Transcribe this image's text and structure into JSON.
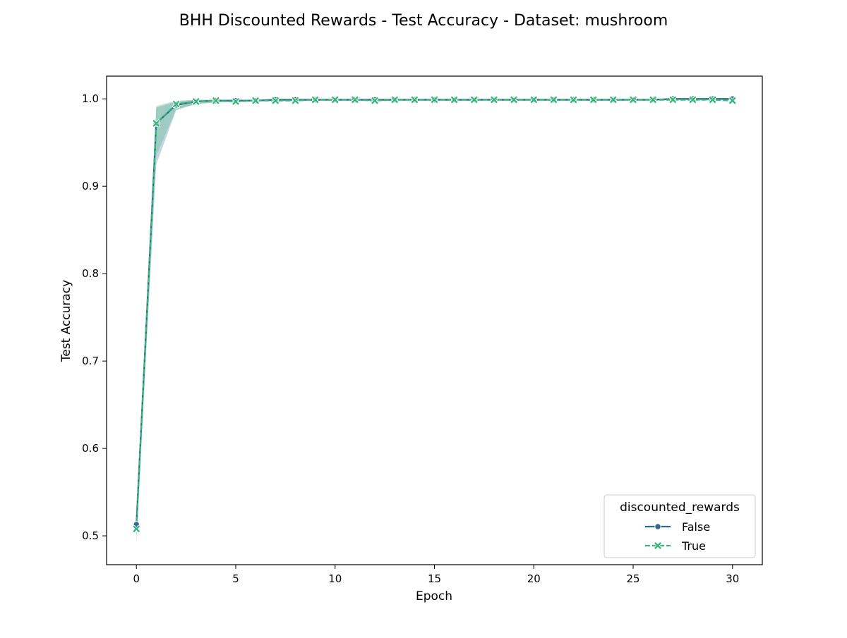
{
  "chart_data": {
    "type": "line",
    "title": "BHH Discounted Rewards - Test Accuracy - Dataset: mushroom",
    "xlabel": "Epoch",
    "ylabel": "Test Accuracy",
    "xlim": [
      -1.5,
      31.5
    ],
    "ylim": [
      0.467,
      1.026
    ],
    "xticks": [
      0,
      5,
      10,
      15,
      20,
      25,
      30
    ],
    "xtick_labels": [
      "0",
      "5",
      "10",
      "15",
      "20",
      "25",
      "30"
    ],
    "yticks": [
      0.5,
      0.6,
      0.7,
      0.8,
      0.9,
      1.0
    ],
    "ytick_labels": [
      "0.5",
      "0.6",
      "0.7",
      "0.8",
      "0.9",
      "1.0"
    ],
    "grid": false,
    "legend": {
      "title": "discounted_rewards",
      "placement": "lower-right"
    },
    "x": [
      0,
      1,
      2,
      3,
      4,
      5,
      6,
      7,
      8,
      9,
      10,
      11,
      12,
      13,
      14,
      15,
      16,
      17,
      18,
      19,
      20,
      21,
      22,
      23,
      24,
      25,
      26,
      27,
      28,
      29,
      30
    ],
    "series": [
      {
        "name": "False",
        "color": "#31688e",
        "marker": "circle",
        "linestyle": "solid",
        "values": [
          0.513,
          0.972,
          0.993,
          0.997,
          0.998,
          0.998,
          0.998,
          0.999,
          0.999,
          0.999,
          0.999,
          0.999,
          0.999,
          0.999,
          0.999,
          0.999,
          0.999,
          0.999,
          0.999,
          0.999,
          0.999,
          0.999,
          0.999,
          0.999,
          0.999,
          0.999,
          0.999,
          1.0,
          1.0,
          1.0,
          1.0
        ],
        "ci_low": [
          0.505,
          0.925,
          0.987,
          0.994,
          0.996,
          0.997,
          0.997,
          0.998,
          0.998,
          0.998,
          0.998,
          0.998,
          0.998,
          0.998,
          0.998,
          0.998,
          0.998,
          0.998,
          0.998,
          0.998,
          0.998,
          0.998,
          0.998,
          0.998,
          0.998,
          0.998,
          0.998,
          0.999,
          0.999,
          0.999,
          0.999
        ],
        "ci_high": [
          0.521,
          0.99,
          0.997,
          0.999,
          0.999,
          0.999,
          0.999,
          1.0,
          1.0,
          1.0,
          1.0,
          1.0,
          1.0,
          1.0,
          1.0,
          1.0,
          1.0,
          1.0,
          1.0,
          1.0,
          1.0,
          1.0,
          1.0,
          1.0,
          1.0,
          1.0,
          1.0,
          1.0,
          1.0,
          1.0,
          1.0
        ]
      },
      {
        "name": "True",
        "color": "#35b779",
        "marker": "x",
        "linestyle": "dashed",
        "values": [
          0.508,
          0.972,
          0.994,
          0.997,
          0.998,
          0.997,
          0.998,
          0.998,
          0.998,
          0.999,
          0.999,
          0.999,
          0.998,
          0.999,
          0.999,
          0.999,
          0.999,
          0.999,
          0.999,
          0.999,
          0.999,
          0.999,
          0.999,
          0.999,
          0.999,
          0.999,
          0.999,
          0.999,
          0.999,
          0.999,
          0.998
        ],
        "ci_low": [
          0.49,
          0.935,
          0.988,
          0.994,
          0.996,
          0.996,
          0.997,
          0.997,
          0.997,
          0.998,
          0.998,
          0.998,
          0.997,
          0.998,
          0.998,
          0.998,
          0.998,
          0.998,
          0.998,
          0.998,
          0.998,
          0.998,
          0.998,
          0.998,
          0.998,
          0.998,
          0.998,
          0.998,
          0.998,
          0.998,
          0.997
        ],
        "ci_high": [
          0.526,
          0.992,
          0.998,
          0.999,
          0.999,
          0.999,
          0.999,
          0.999,
          0.999,
          1.0,
          1.0,
          1.0,
          0.999,
          1.0,
          1.0,
          1.0,
          1.0,
          1.0,
          1.0,
          1.0,
          1.0,
          1.0,
          1.0,
          1.0,
          1.0,
          1.0,
          1.0,
          1.0,
          1.0,
          1.0,
          0.999
        ]
      }
    ]
  }
}
